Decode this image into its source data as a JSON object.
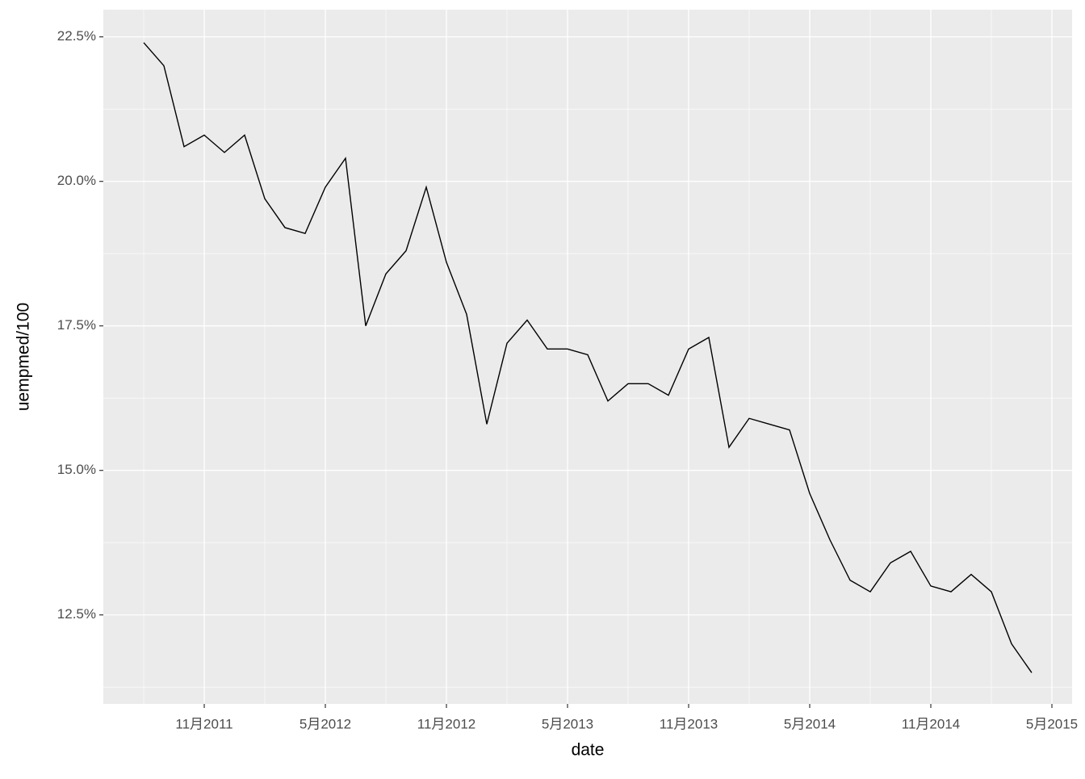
{
  "chart_data": {
    "type": "line",
    "x_label": "date",
    "y_label": "uempmed/100",
    "x": [
      "2011-08",
      "2011-09",
      "2011-10",
      "2011-11",
      "2011-12",
      "2012-01",
      "2012-02",
      "2012-03",
      "2012-04",
      "2012-05",
      "2012-06",
      "2012-07",
      "2012-08",
      "2012-09",
      "2012-10",
      "2012-11",
      "2012-12",
      "2013-01",
      "2013-02",
      "2013-03",
      "2013-04",
      "2013-05",
      "2013-06",
      "2013-07",
      "2013-08",
      "2013-09",
      "2013-10",
      "2013-11",
      "2013-12",
      "2014-01",
      "2014-02",
      "2014-03",
      "2014-04",
      "2014-05",
      "2014-06",
      "2014-07",
      "2014-08",
      "2014-09",
      "2014-10",
      "2014-11",
      "2014-12",
      "2015-01",
      "2015-02",
      "2015-03",
      "2015-04"
    ],
    "values": [
      22.4,
      22.0,
      20.6,
      20.8,
      20.5,
      20.8,
      19.7,
      19.2,
      19.1,
      19.9,
      20.4,
      17.5,
      18.4,
      18.8,
      19.9,
      18.6,
      17.7,
      15.8,
      17.2,
      17.6,
      17.1,
      17.1,
      17.0,
      16.2,
      16.5,
      16.5,
      16.3,
      17.1,
      17.3,
      15.4,
      15.9,
      15.8,
      15.7,
      14.6,
      13.8,
      13.1,
      12.9,
      13.4,
      13.6,
      13.0,
      12.9,
      13.2,
      12.9,
      12.0,
      11.5
    ],
    "color": "#000000",
    "xlim": [
      "2011-06",
      "2015-06"
    ],
    "xticks": [
      {
        "value": "2011-11",
        "label": "11月2011"
      },
      {
        "value": "2012-05",
        "label": "5月2012"
      },
      {
        "value": "2012-11",
        "label": "11月2012"
      },
      {
        "value": "2013-05",
        "label": "5月2013"
      },
      {
        "value": "2013-11",
        "label": "11月2013"
      },
      {
        "value": "2014-05",
        "label": "5月2014"
      },
      {
        "value": "2014-11",
        "label": "11月2014"
      },
      {
        "value": "2015-05",
        "label": "5月2015"
      }
    ],
    "ylim": [
      10.96,
      22.97
    ],
    "yticks": [
      {
        "value": 12.5,
        "label": "12.5%"
      },
      {
        "value": 15.0,
        "label": "15.0%"
      },
      {
        "value": 17.5,
        "label": "17.5%"
      },
      {
        "value": 20.0,
        "label": "20.0%"
      },
      {
        "value": 22.5,
        "label": "22.5%"
      }
    ],
    "grid": true
  }
}
